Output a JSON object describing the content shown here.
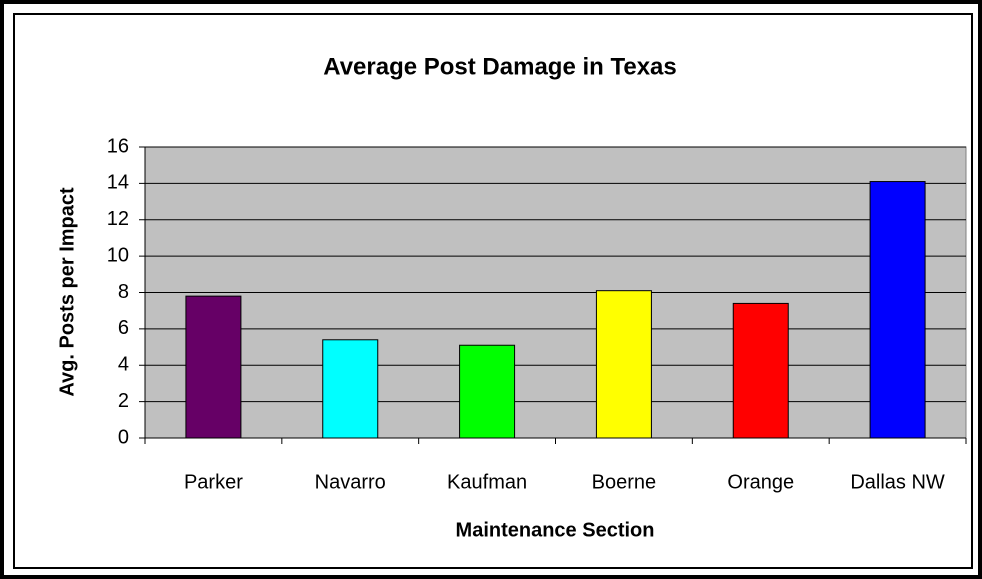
{
  "chart_data": {
    "type": "bar",
    "title": "Average Post Damage in Texas",
    "x_label": "Maintenance Section",
    "y_label": "Avg. Posts per Impact",
    "categories": [
      "Parker",
      "Navarro",
      "Kaufman",
      "Boerne",
      "Orange",
      "Dallas NW"
    ],
    "values": [
      7.8,
      5.4,
      5.1,
      8.1,
      7.4,
      14.1
    ],
    "colors": [
      "#660066",
      "#00ffff",
      "#00ff00",
      "#ffff00",
      "#ff0000",
      "#0000ff"
    ],
    "ylim": [
      0,
      16
    ],
    "yticks": [
      0,
      2,
      4,
      6,
      8,
      10,
      12,
      14,
      16
    ],
    "grid": true
  }
}
